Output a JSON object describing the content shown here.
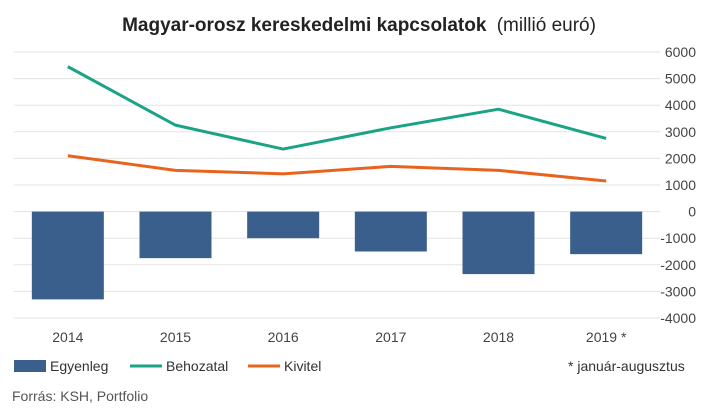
{
  "chart_data": {
    "type": "bar",
    "title": "Magyar-orosz kereskedelmi kapcsolatok",
    "subtitle": "(millió euró)",
    "categories": [
      "2014",
      "2015",
      "2016",
      "2017",
      "2018",
      "2019 *"
    ],
    "series": [
      {
        "name": "Egyenleg",
        "kind": "bar",
        "color": "#3b5f8c",
        "values": [
          -3300,
          -1750,
          -1000,
          -1500,
          -2350,
          -1600
        ]
      },
      {
        "name": "Behozatal",
        "kind": "line",
        "color": "#1aa384",
        "values": [
          5450,
          3250,
          2350,
          3150,
          3850,
          2750
        ]
      },
      {
        "name": "Kivitel",
        "kind": "line",
        "color": "#e8641e",
        "values": [
          2100,
          1550,
          1420,
          1700,
          1550,
          1150
        ]
      }
    ],
    "ylim": [
      -4000,
      6000
    ],
    "yticks": [
      6000,
      5000,
      4000,
      3000,
      2000,
      1000,
      0,
      -1000,
      -2000,
      -3000,
      -4000
    ],
    "y_axis_side": "right",
    "grid": true,
    "legend_position": "bottom-left",
    "note": "* január-augusztus",
    "source": "Forrás: KSH, Portfolio"
  }
}
